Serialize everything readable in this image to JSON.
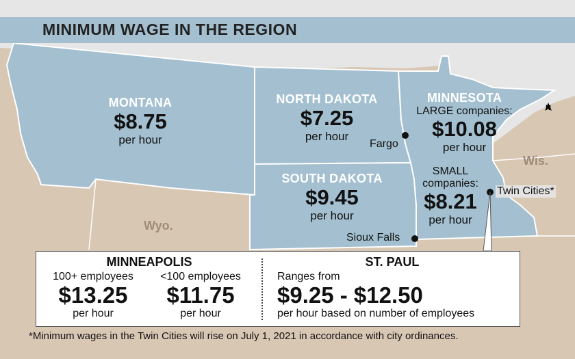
{
  "title": "MINIMUM WAGE IN THE REGION",
  "colors": {
    "highlight_state": "#a3bfd0",
    "other_land": "#d8c7b3",
    "water": "#e6e6e6",
    "callout_bg": "#ffffff"
  },
  "states": {
    "montana": {
      "name": "MONTANA",
      "wage": "$8.75",
      "unit": "per hour"
    },
    "north_dakota": {
      "name": "NORTH DAKOTA",
      "wage": "$7.25",
      "unit": "per hour"
    },
    "south_dakota": {
      "name": "SOUTH DAKOTA",
      "wage": "$9.45",
      "unit": "per hour"
    },
    "minnesota": {
      "name": "MINNESOTA",
      "large_label": "LARGE companies:",
      "large_wage": "$10.08",
      "large_unit": "per hour",
      "small_label_1": "SMALL",
      "small_label_2": "companies:",
      "small_wage": "$8.21",
      "small_unit": "per hour"
    }
  },
  "other_states": {
    "wyoming": "Wyo.",
    "wisconsin": "Wis."
  },
  "cities": {
    "fargo": "Fargo",
    "sioux_falls": "Sioux Falls",
    "twin_cities": "Twin Cities*"
  },
  "compass": "N",
  "callout": {
    "minneapolis": {
      "heading": "MINNEAPOLIS",
      "col1_label": "100+ employees",
      "col1_wage": "$13.25",
      "col1_unit": "per hour",
      "col2_label": "<100 employees",
      "col2_wage": "$11.75",
      "col2_unit": "per hour"
    },
    "st_paul": {
      "heading": "ST. PAUL",
      "range_label": "Ranges from",
      "range": "$9.25 - $12.50",
      "note": "per hour based on number of employees"
    }
  },
  "footnote": "*Minimum wages in the Twin Cities will rise on July 1, 2021 in accordance with city ordinances."
}
